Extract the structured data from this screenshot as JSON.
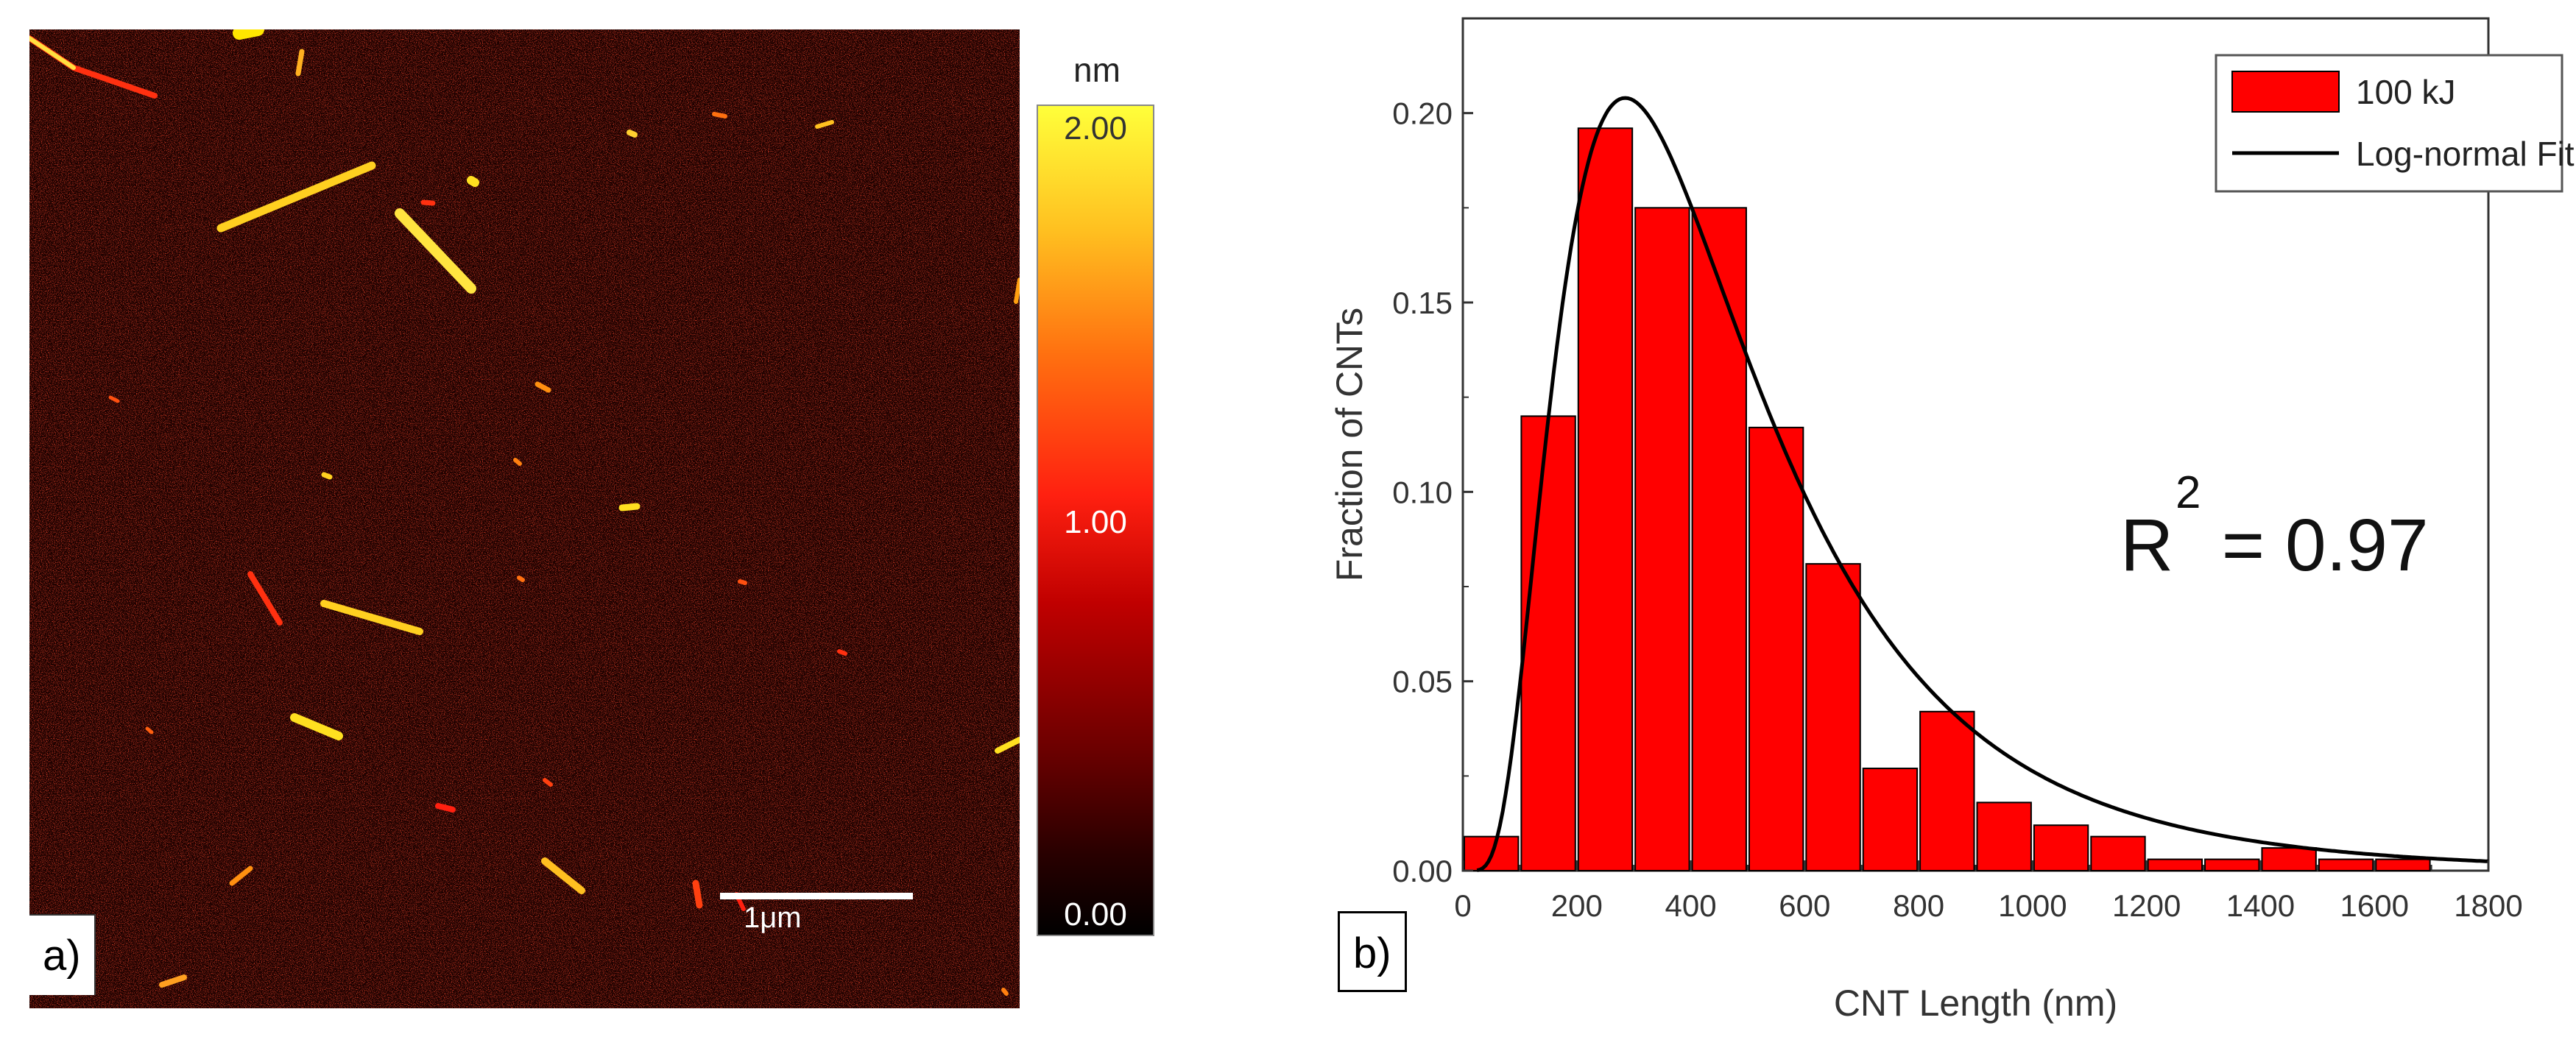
{
  "panel_a": {
    "label": "a)",
    "colorbar": {
      "unit": "nm",
      "max_label": "2.00",
      "mid_label": "1.00",
      "min_label": "0.00"
    },
    "scale_bar_label": "1μm"
  },
  "panel_b": {
    "label": "b)"
  },
  "chart_data": {
    "type": "bar",
    "title": "",
    "xlabel": "CNT Length (nm)",
    "ylabel": "Fraction of CNTs",
    "xlim": [
      0,
      1800
    ],
    "ylim": [
      0,
      0.225
    ],
    "xticks": [
      0,
      200,
      400,
      600,
      800,
      1000,
      1200,
      1400,
      1600,
      1800
    ],
    "yticks": [
      0.0,
      0.05,
      0.1,
      0.15,
      0.2
    ],
    "ytick_labels": [
      "0.00",
      "0.05",
      "0.10",
      "0.15",
      "0.20"
    ],
    "bin_width": 100,
    "bin_centers": [
      50,
      150,
      250,
      350,
      450,
      550,
      650,
      750,
      850,
      950,
      1050,
      1150,
      1250,
      1350,
      1450,
      1550,
      1650
    ],
    "series": [
      {
        "name": "100 kJ",
        "color": "#ff0000",
        "values": [
          0.009,
          0.12,
          0.196,
          0.175,
          0.175,
          0.117,
          0.081,
          0.027,
          0.042,
          0.018,
          0.012,
          0.009,
          0.003,
          0.003,
          0.006,
          0.003,
          0.003
        ]
      }
    ],
    "fit": {
      "name": "Log-normal Fit",
      "type": "lognormal",
      "peak_x": 285,
      "peak_y": 0.204,
      "color": "#000000"
    },
    "annotation": {
      "text_base": "R",
      "text_sup": "2",
      "text_rest": " = 0.97"
    },
    "legend_position": "top-right"
  }
}
